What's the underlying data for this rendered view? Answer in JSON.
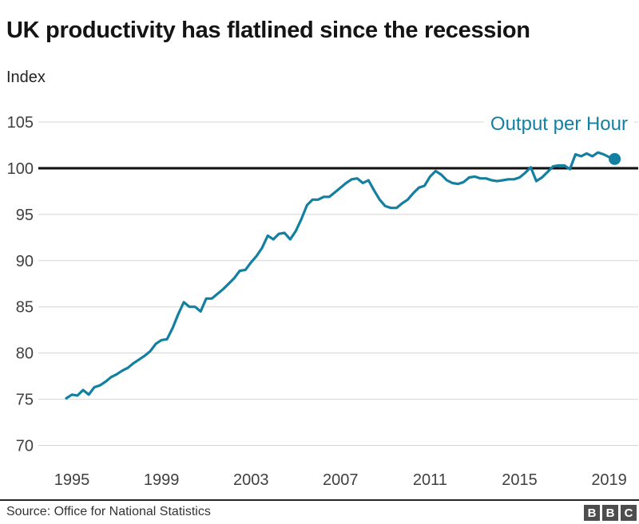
{
  "header": {
    "title": "UK productivity has flatlined since the recession",
    "unit_label": "Index"
  },
  "chart_data": {
    "type": "line",
    "title": "UK productivity has flatlined since the recession",
    "ylabel": "Index",
    "grid": "horizontal",
    "legend_position": "top-right",
    "series": [
      {
        "name": "Output per Hour",
        "x_start": 1994.75,
        "x_step": 0.25,
        "values": [
          75.1,
          75.5,
          75.4,
          76.0,
          75.5,
          76.3,
          76.5,
          76.9,
          77.4,
          77.7,
          78.1,
          78.4,
          78.9,
          79.3,
          79.7,
          80.2,
          81.0,
          81.4,
          81.5,
          82.7,
          84.2,
          85.5,
          85.0,
          85.0,
          84.5,
          85.9,
          85.9,
          86.4,
          86.9,
          87.5,
          88.1,
          88.9,
          89.0,
          89.8,
          90.5,
          91.4,
          92.7,
          92.3,
          92.9,
          93.0,
          92.3,
          93.2,
          94.5,
          96.0,
          96.6,
          96.6,
          96.9,
          96.9,
          97.4,
          97.9,
          98.4,
          98.8,
          98.9,
          98.4,
          98.7,
          97.6,
          96.6,
          95.9,
          95.7,
          95.7,
          96.2,
          96.6,
          97.3,
          97.9,
          98.1,
          99.1,
          99.7,
          99.3,
          98.7,
          98.4,
          98.3,
          98.5,
          99.0,
          99.1,
          98.9,
          98.9,
          98.7,
          98.6,
          98.7,
          98.8,
          98.8,
          99.0,
          99.5,
          100.1,
          98.6,
          99.0,
          99.6,
          100.2,
          100.3,
          100.3,
          99.9,
          101.5,
          101.3,
          101.6,
          101.3,
          101.7,
          101.5,
          101.2,
          101.0
        ]
      }
    ],
    "end_point": {
      "x": 2019.25,
      "y": 101.0
    },
    "y_axis": {
      "ticks": [
        105,
        100,
        95,
        90,
        85,
        80,
        75,
        70
      ],
      "range": [
        70,
        105
      ],
      "reference_line": 100
    },
    "x_axis": {
      "ticks": [
        1995,
        1999,
        2003,
        2007,
        2011,
        2015,
        2019
      ],
      "range": [
        1993.5,
        2020.3
      ]
    },
    "colors": {
      "line": "#1380A1",
      "reference_line": "#141414",
      "gridline": "#d5d5d5",
      "tick_text": "#404040"
    }
  },
  "footer": {
    "source": "Source: Office for National Statistics",
    "logo_letters": [
      "B",
      "B",
      "C"
    ]
  }
}
